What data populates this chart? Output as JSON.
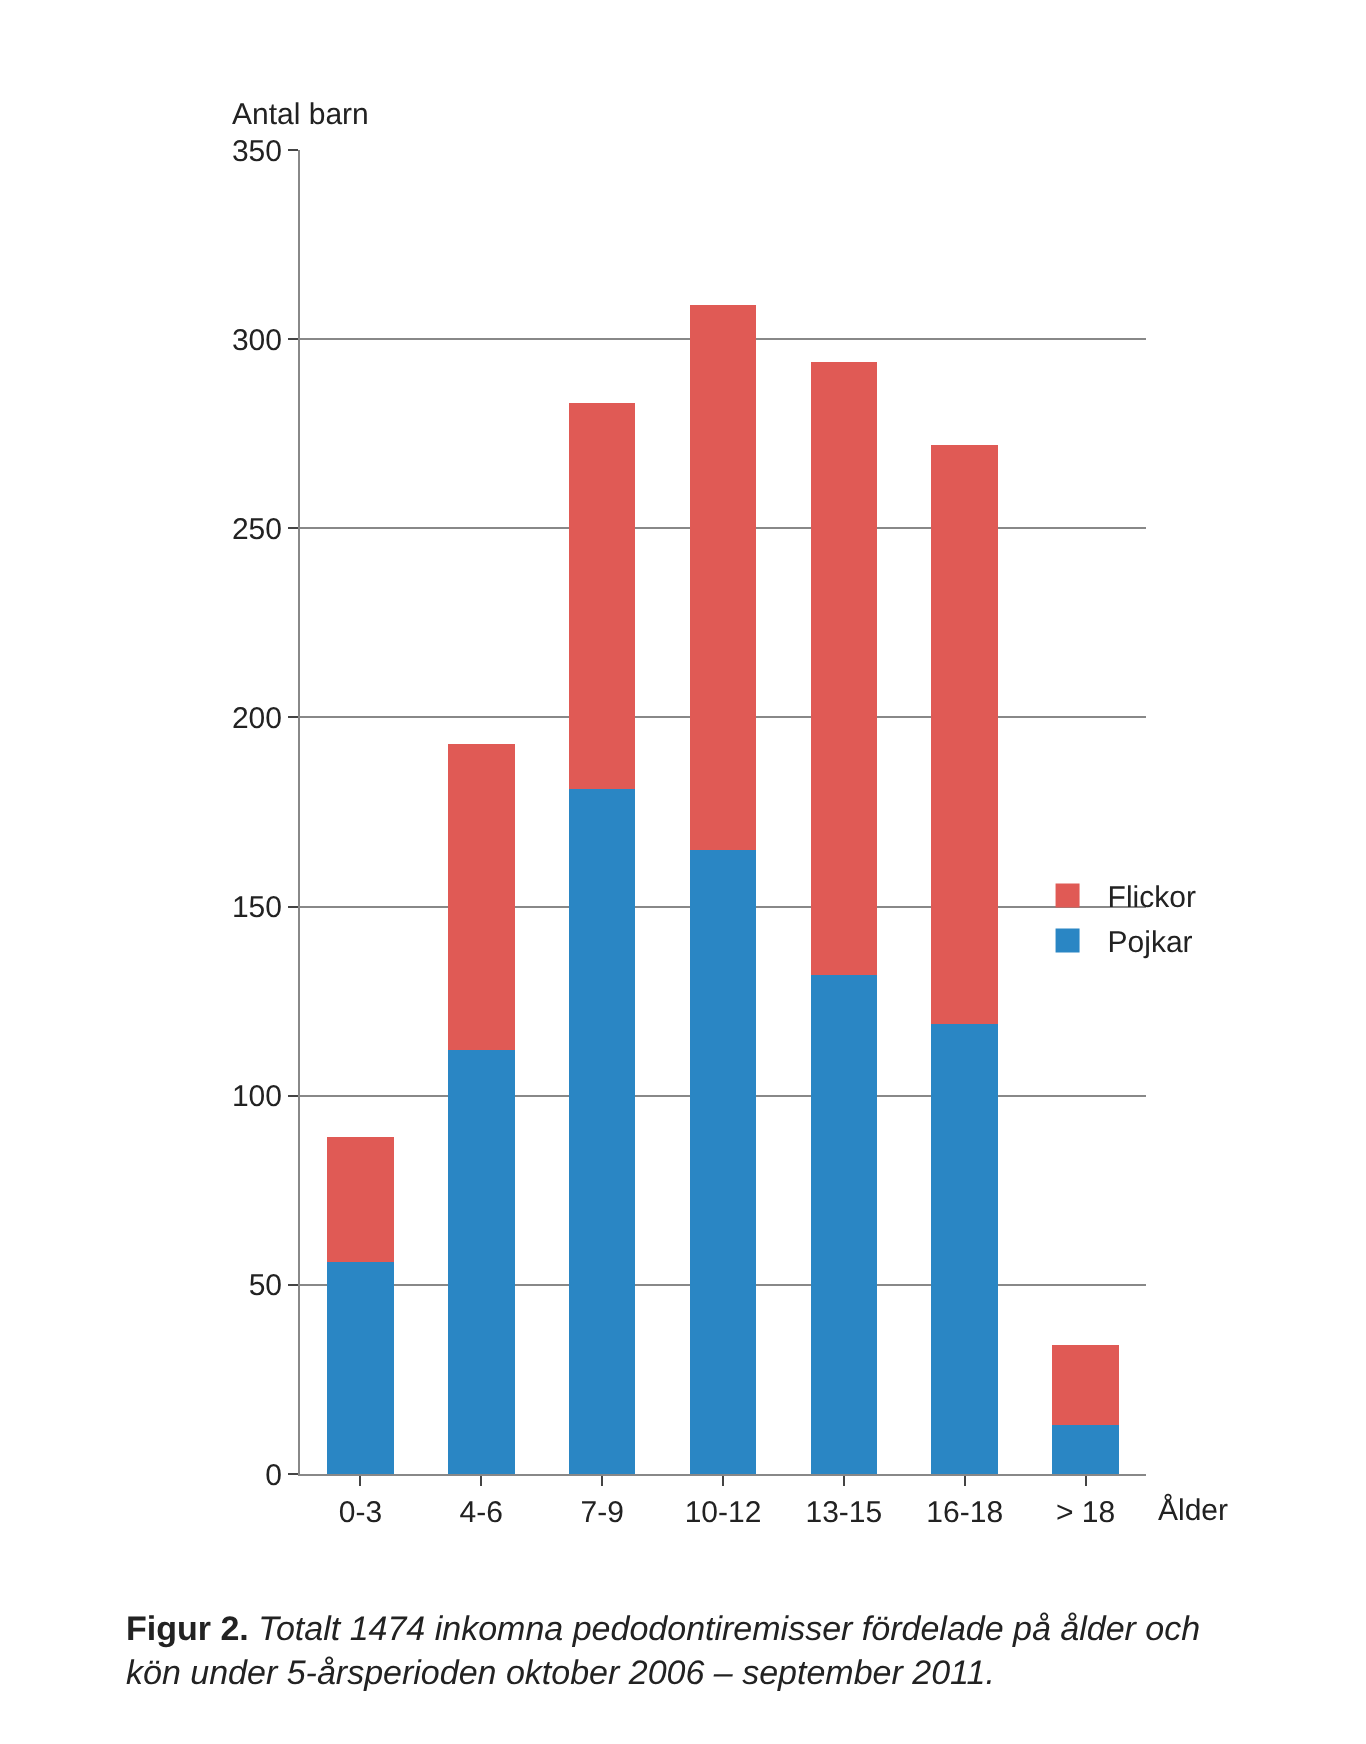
{
  "chart_data": {
    "type": "bar",
    "stacked": true,
    "categories": [
      "0-3",
      "4-6",
      "7-9",
      "10-12",
      "13-15",
      "16-18",
      "> 18"
    ],
    "series": [
      {
        "name": "Pojkar",
        "color": "#2a86c4",
        "values": [
          56,
          112,
          181,
          165,
          132,
          119,
          13
        ]
      },
      {
        "name": "Flickor",
        "color": "#e05a55",
        "values": [
          33,
          81,
          102,
          144,
          162,
          153,
          21
        ]
      }
    ],
    "ylabel": "Antal barn",
    "xlabel": "Ålder",
    "ylim": [
      0,
      350
    ],
    "yticks": [
      0,
      50,
      100,
      150,
      200,
      250,
      300,
      350
    ],
    "grid": "y",
    "legend": "right",
    "annotations": [
      "Figur 2.",
      "Totalt 1474 inkomna pedodontiremisser fördelade på ålder och kön under 5-årsperioden oktober 2006 – september 2011."
    ]
  }
}
